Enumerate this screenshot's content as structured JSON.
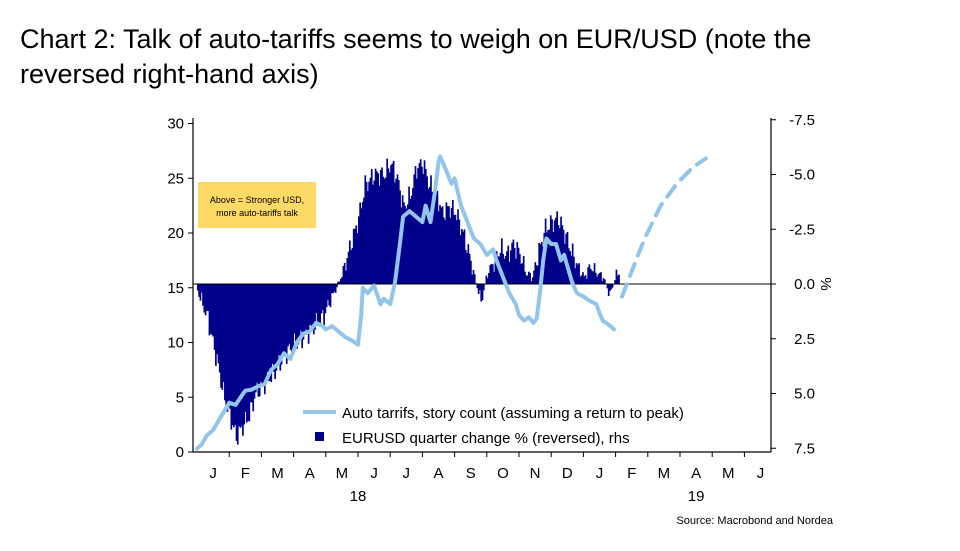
{
  "title": "Chart 2: Talk of auto-tariffs seems to weigh on EUR/USD (note the reversed right-hand axis)",
  "source": "Source: Macrobond and Nordea",
  "chart_data": {
    "type": "bar+line",
    "title": "Chart 2: Talk of auto-tariffs seems to weigh on EUR/USD (note the reversed right-hand axis)",
    "annotation": "Above = Stronger USD, more auto-tariffs talk",
    "x_months": [
      "J",
      "F",
      "M",
      "A",
      "M",
      "J",
      "J",
      "A",
      "S",
      "O",
      "N",
      "D",
      "J",
      "F",
      "M",
      "A",
      "M",
      "J"
    ],
    "x_years": [
      {
        "label": "18",
        "month_index": 5
      },
      {
        "label": "19",
        "month_index": 15.5
      }
    ],
    "left_axis": {
      "ylim": [
        0,
        30
      ],
      "ticks": [
        "0",
        "5",
        "10",
        "15",
        "20",
        "25",
        "30"
      ]
    },
    "right_axis": {
      "ylim": [
        7.5,
        -7.5
      ],
      "reversed": true,
      "unit": "%",
      "ticks": [
        "7.5",
        "5.0",
        "2.5",
        "0.0",
        "-2.5",
        "-5.0",
        "-7.5"
      ]
    },
    "legend": [
      "Auto tarrifs, story count (assuming a return to peak)",
      "EURUSD quarter change % (reversed), rhs"
    ],
    "colors": {
      "bars": "#00008B",
      "line": "#92C5EC",
      "annotation_bg": "#FFD966"
    },
    "series": [
      {
        "name": "Auto tarrifs, story count (assuming a return to peak)",
        "axis": "left",
        "points": [
          [
            0.0,
            0.3
          ],
          [
            0.15,
            0.7
          ],
          [
            0.3,
            1.5
          ],
          [
            0.5,
            2.0
          ],
          [
            0.7,
            3.0
          ],
          [
            0.9,
            4.0
          ],
          [
            1.0,
            4.5
          ],
          [
            1.2,
            4.3
          ],
          [
            1.4,
            5.2
          ],
          [
            1.5,
            5.6
          ],
          [
            1.7,
            5.7
          ],
          [
            1.9,
            6.0
          ],
          [
            2.1,
            6.2
          ],
          [
            2.3,
            7.5
          ],
          [
            2.5,
            8.0
          ],
          [
            2.7,
            9.0
          ],
          [
            2.9,
            8.5
          ],
          [
            3.1,
            10.0
          ],
          [
            3.3,
            10.8
          ],
          [
            3.5,
            11.0
          ],
          [
            3.7,
            11.8
          ],
          [
            3.9,
            11.5
          ],
          [
            4.0,
            11.2
          ],
          [
            4.2,
            11.5
          ],
          [
            4.4,
            11.0
          ],
          [
            4.6,
            10.5
          ],
          [
            4.8,
            10.2
          ],
          [
            5.0,
            9.8
          ],
          [
            5.1,
            12.5
          ],
          [
            5.15,
            15.0
          ],
          [
            5.3,
            14.5
          ],
          [
            5.5,
            15.2
          ],
          [
            5.7,
            13.5
          ],
          [
            5.8,
            14.0
          ],
          [
            6.0,
            13.5
          ],
          [
            6.15,
            15.5
          ],
          [
            6.3,
            19.0
          ],
          [
            6.4,
            21.5
          ],
          [
            6.6,
            22.0
          ],
          [
            6.8,
            21.5
          ],
          [
            7.0,
            21.0
          ],
          [
            7.1,
            22.5
          ],
          [
            7.25,
            21.0
          ],
          [
            7.4,
            24.0
          ],
          [
            7.5,
            26.5
          ],
          [
            7.55,
            27.0
          ],
          [
            7.7,
            26.0
          ],
          [
            7.9,
            24.5
          ],
          [
            8.0,
            25.0
          ],
          [
            8.2,
            22.5
          ],
          [
            8.4,
            21.0
          ],
          [
            8.6,
            19.5
          ],
          [
            8.8,
            19.0
          ],
          [
            9.0,
            18.0
          ],
          [
            9.2,
            18.5
          ],
          [
            9.3,
            17.5
          ],
          [
            9.5,
            16.0
          ],
          [
            9.7,
            14.5
          ],
          [
            9.9,
            13.5
          ],
          [
            10.0,
            12.5
          ],
          [
            10.15,
            12.0
          ],
          [
            10.3,
            12.3
          ],
          [
            10.45,
            11.8
          ],
          [
            10.55,
            12.2
          ],
          [
            10.65,
            14.5
          ],
          [
            10.75,
            17.5
          ],
          [
            10.85,
            19.5
          ],
          [
            11.0,
            19.0
          ],
          [
            11.15,
            19.0
          ],
          [
            11.3,
            17.5
          ],
          [
            11.4,
            18.0
          ],
          [
            11.5,
            17.0
          ],
          [
            11.65,
            15.5
          ],
          [
            11.8,
            14.5
          ],
          [
            12.0,
            14.2
          ],
          [
            12.2,
            13.8
          ],
          [
            12.4,
            13.5
          ],
          [
            12.5,
            12.7
          ],
          [
            12.6,
            12.0
          ],
          [
            12.8,
            11.6
          ],
          [
            12.95,
            11.2
          ]
        ]
      },
      {
        "name": "Auto tarrifs, story count (assuming a return to peak) - projection",
        "axis": "left",
        "dashed": true,
        "points": [
          [
            13.2,
            14.2
          ],
          [
            13.5,
            16.5
          ],
          [
            13.9,
            19.5
          ],
          [
            14.4,
            22.5
          ],
          [
            14.9,
            24.5
          ],
          [
            15.4,
            26.0
          ],
          [
            15.8,
            26.8
          ]
        ]
      },
      {
        "name": "EURUSD quarter change % (reversed), rhs",
        "axis": "right",
        "bars_daily": [
          [
            0.0,
            0.3
          ],
          [
            0.3,
            1.5
          ],
          [
            0.6,
            3.5
          ],
          [
            0.8,
            5.0
          ],
          [
            1.0,
            6.0
          ],
          [
            1.2,
            7.0
          ],
          [
            1.4,
            6.5
          ],
          [
            1.6,
            6.0
          ],
          [
            1.8,
            5.0
          ],
          [
            2.1,
            4.5
          ],
          [
            2.4,
            4.0
          ],
          [
            2.7,
            3.2
          ],
          [
            3.0,
            2.8
          ],
          [
            3.3,
            2.4
          ],
          [
            3.6,
            2.0
          ],
          [
            3.9,
            1.5
          ],
          [
            4.1,
            0.8
          ],
          [
            4.3,
            0.2
          ],
          [
            4.5,
            -0.5
          ],
          [
            4.7,
            -1.5
          ],
          [
            5.0,
            -3.0
          ],
          [
            5.2,
            -4.5
          ],
          [
            5.5,
            -5.0
          ],
          [
            5.8,
            -5.0
          ],
          [
            6.0,
            -5.5
          ],
          [
            6.2,
            -4.8
          ],
          [
            6.4,
            -3.5
          ],
          [
            6.6,
            -4.0
          ],
          [
            6.8,
            -5.3
          ],
          [
            7.0,
            -5.5
          ],
          [
            7.2,
            -4.5
          ],
          [
            7.4,
            -4.2
          ],
          [
            7.6,
            -3.2
          ],
          [
            7.8,
            -3.5
          ],
          [
            8.0,
            -3.3
          ],
          [
            8.2,
            -2.5
          ],
          [
            8.4,
            -1.5
          ],
          [
            8.6,
            -0.3
          ],
          [
            8.8,
            0.8
          ],
          [
            9.0,
            -0.5
          ],
          [
            9.2,
            -1.0
          ],
          [
            9.4,
            -1.6
          ],
          [
            9.6,
            -1.3
          ],
          [
            9.8,
            -1.8
          ],
          [
            10.0,
            -1.4
          ],
          [
            10.2,
            -0.5
          ],
          [
            10.4,
            -0.3
          ],
          [
            10.6,
            -1.5
          ],
          [
            10.8,
            -2.5
          ],
          [
            11.0,
            -2.8
          ],
          [
            11.2,
            -3.0
          ],
          [
            11.4,
            -2.3
          ],
          [
            11.6,
            -1.5
          ],
          [
            11.8,
            -0.8
          ],
          [
            12.0,
            -0.3
          ],
          [
            12.2,
            -0.8
          ],
          [
            12.4,
            -0.5
          ],
          [
            12.6,
            -0.3
          ],
          [
            12.8,
            0.5
          ],
          [
            13.0,
            -0.4
          ],
          [
            13.1,
            -0.6
          ]
        ]
      }
    ]
  }
}
